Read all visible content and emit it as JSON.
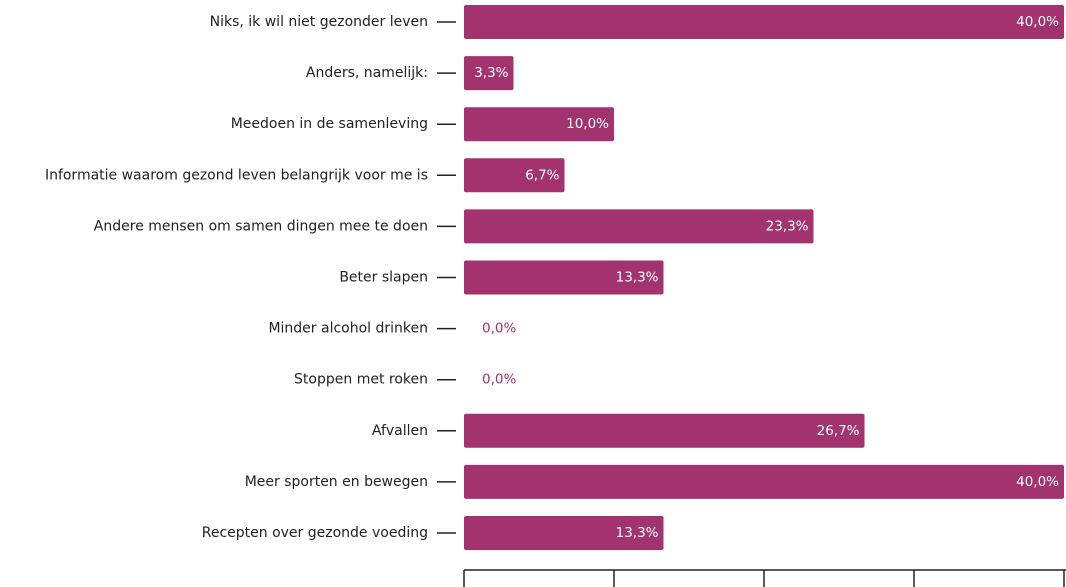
{
  "chart_data": {
    "type": "bar",
    "orientation": "horizontal",
    "categories": [
      "Niks, ik wil niet gezonder leven",
      "Anders, namelijk:",
      "Meedoen in de samenleving",
      "Informatie waarom gezond leven belangrijk voor me is",
      "Andere mensen om samen dingen mee te doen",
      "Beter slapen",
      "Minder alcohol drinken",
      "Stoppen met roken",
      "Afvallen",
      "Meer sporten en bewegen",
      "Recepten over gezonde voeding"
    ],
    "values": [
      40,
      3.3,
      10,
      6.7,
      23.3,
      13.3,
      0,
      0,
      26.7,
      40,
      13.3
    ],
    "value_labels": [
      "40,0%",
      "3,3%",
      "10,0%",
      "6,7%",
      "23,3%",
      "13,3%",
      "0,0%",
      "0,0%",
      "26,7%",
      "40,0%",
      "13,3%"
    ],
    "color": "#a3336f",
    "xlim": [
      0,
      40
    ],
    "xticks": [
      0,
      10,
      20,
      30,
      40
    ]
  }
}
